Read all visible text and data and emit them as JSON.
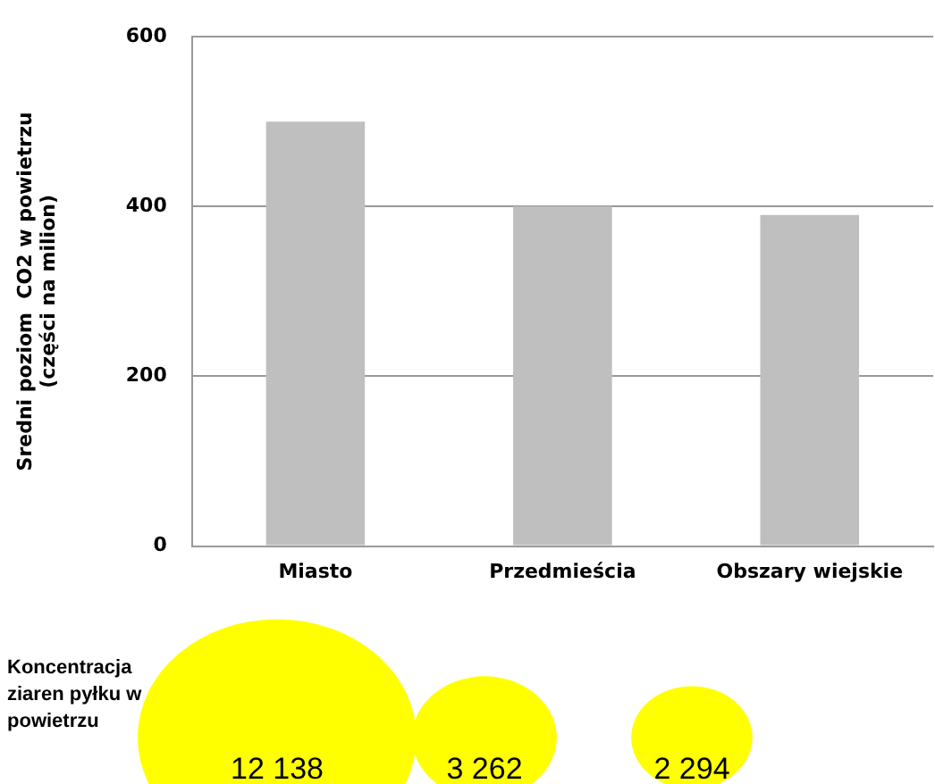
{
  "chart_data": [
    {
      "type": "bar",
      "ylabel": "Sredni poziom  CO2 w powietrzu\n(części na milion)",
      "categories": [
        "Miasto",
        "Przedmieścia",
        "Obszary wiejskie"
      ],
      "values": [
        500,
        400,
        390
      ],
      "color": "#bfbfbf",
      "ylim": [
        0,
        600
      ],
      "yticks": [
        0,
        200,
        400,
        600
      ],
      "grid": "y"
    },
    {
      "type": "other",
      "title": "Koncentracja ziaren pyłku w powietrzu",
      "categories": [
        null,
        null,
        null
      ],
      "values": [
        12138,
        3262,
        2294
      ],
      "value_labels": [
        "12 138",
        "3 262",
        "2 294"
      ],
      "color": "#ffff00"
    }
  ]
}
